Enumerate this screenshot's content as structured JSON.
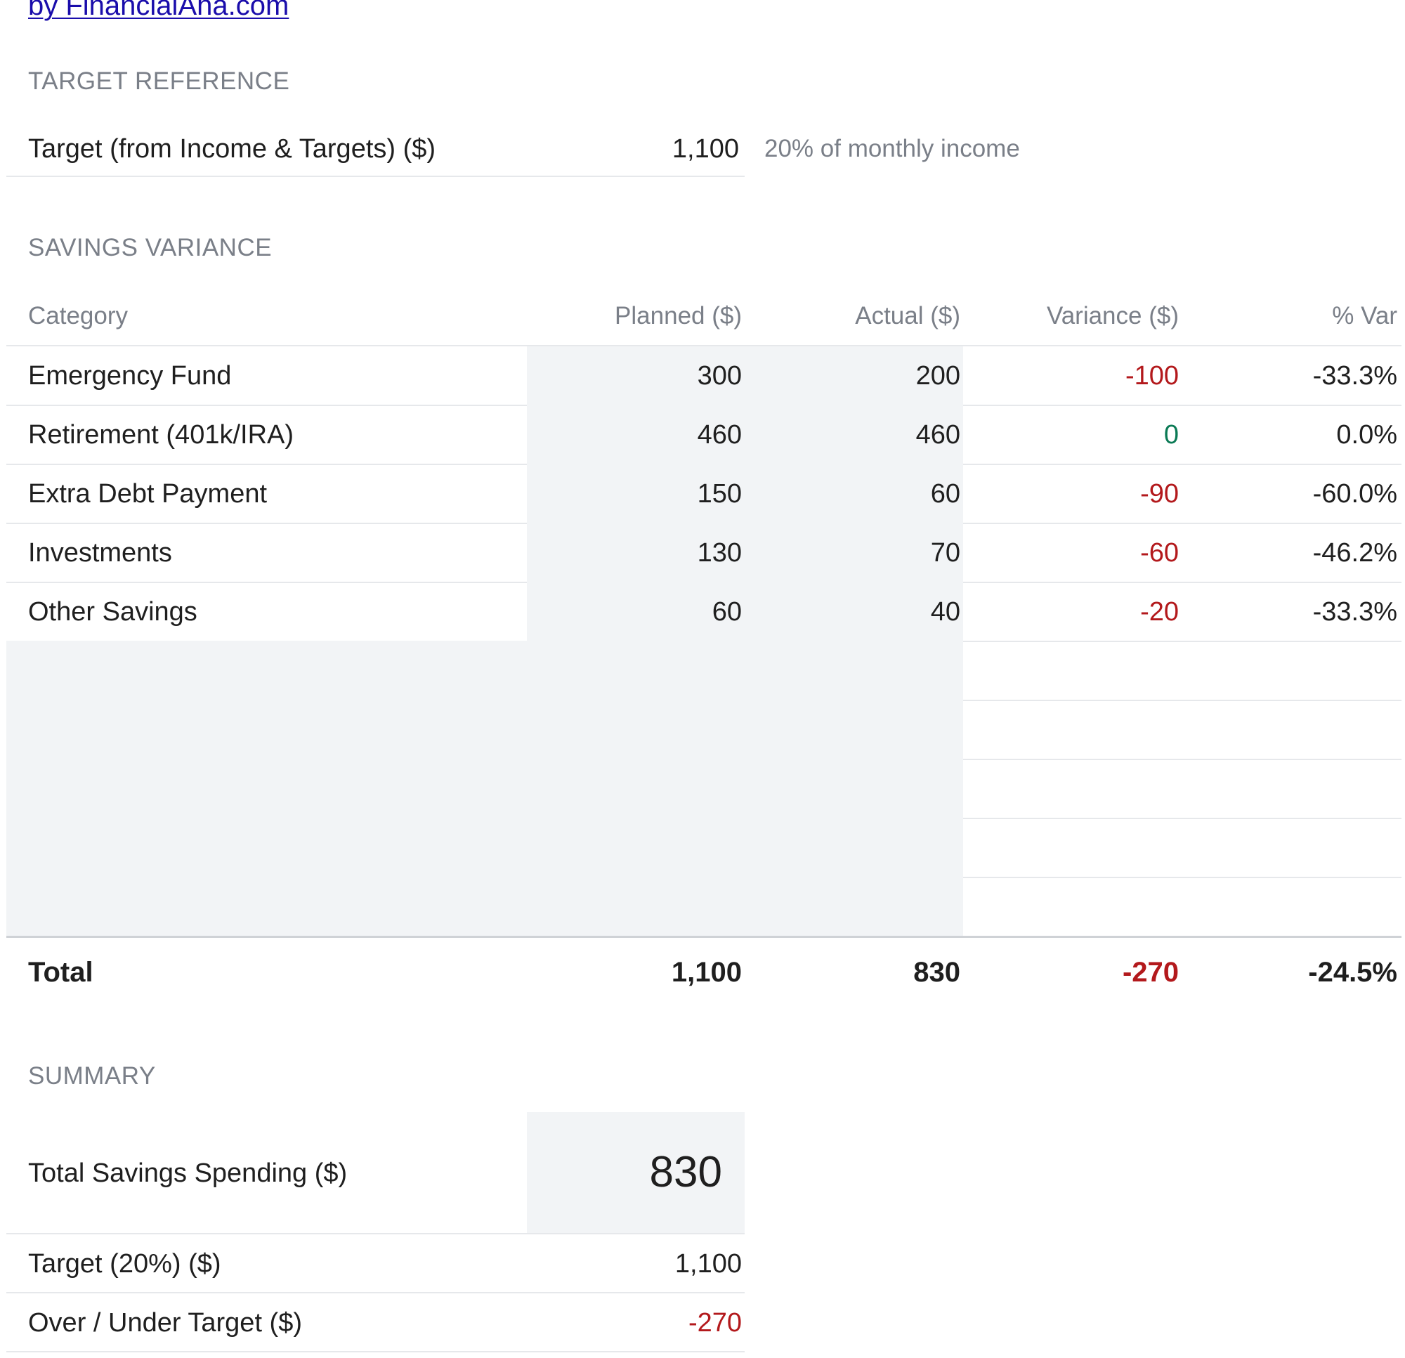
{
  "brand": {
    "link_text": "by FinancialAha.com"
  },
  "target_reference": {
    "heading": "TARGET REFERENCE",
    "label": "Target (from Income & Targets) ($)",
    "value": "1,100",
    "note": "20% of monthly income"
  },
  "savings_variance": {
    "heading": "SAVINGS VARIANCE",
    "columns": {
      "category": "Category",
      "planned": "Planned ($)",
      "actual": "Actual ($)",
      "variance": "Variance ($)",
      "pct_var": "% Var"
    },
    "rows": [
      {
        "category": "Emergency Fund",
        "planned": "300",
        "actual": "200",
        "variance": "-100",
        "pct_var": "-33.3%"
      },
      {
        "category": "Retirement (401k/IRA)",
        "planned": "460",
        "actual": "460",
        "variance": "0",
        "pct_var": "0.0%"
      },
      {
        "category": "Extra Debt Payment",
        "planned": "150",
        "actual": "60",
        "variance": "-90",
        "pct_var": "-60.0%"
      },
      {
        "category": "Investments",
        "planned": "130",
        "actual": "70",
        "variance": "-60",
        "pct_var": "-46.2%"
      },
      {
        "category": "Other Savings",
        "planned": "60",
        "actual": "40",
        "variance": "-20",
        "pct_var": "-33.3%"
      }
    ],
    "total": {
      "label": "Total",
      "planned": "1,100",
      "actual": "830",
      "variance": "-270",
      "pct_var": "-24.5%"
    }
  },
  "summary": {
    "heading": "SUMMARY",
    "total_savings_label": "Total Savings Spending ($)",
    "total_savings_value": "830",
    "target_label": "Target (20%) ($)",
    "target_value": "1,100",
    "over_under_label": "Over / Under Target ($)",
    "over_under_value": "-270"
  },
  "colors": {
    "negative": "#b3191c",
    "zero": "#0b7a55",
    "link": "#1a0dab",
    "input_shade": "#f2f4f6"
  }
}
